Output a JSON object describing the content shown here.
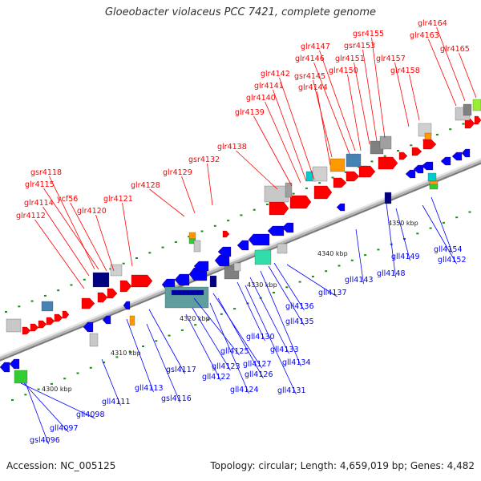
{
  "title": "Gloeobacter violaceus PCC 7421, complete genome",
  "footer": {
    "accession": "Accession: NC_005125",
    "summary": "Topology: circular; Length: 4,659,019 bp; Genes: 4,482"
  },
  "colors": {
    "forward": "#ff0000",
    "reverse": "#0000ff",
    "backbone": "#999999",
    "marker": "#1a8a1a"
  },
  "ticks": [
    "4300 kbp",
    "4310 kbp",
    "4320 kbp",
    "4330 kbp",
    "4340 kbp",
    "4350 kbp"
  ],
  "forward_genes": [
    "gsr4118",
    "glr4115",
    "ycf56",
    "glr4114",
    "glr4120",
    "glr4121",
    "glr4112",
    "glr4128",
    "glr4129",
    "gsr4132",
    "glr4138",
    "glr4139",
    "glr4140",
    "glr4141",
    "glr4142",
    "glr4144",
    "gsr4145",
    "glr4146",
    "glr4147",
    "gsr4153",
    "gsr4155",
    "glr4150",
    "glr4151",
    "glr4157",
    "glr4158",
    "glr4163",
    "glr4164",
    "glr4165"
  ],
  "reverse_genes": [
    "gsl4096",
    "gll4097",
    "gll4098",
    "gll4111",
    "gll4113",
    "gsl4116",
    "gsl4117",
    "gll4122",
    "gll4123",
    "gll4124",
    "gll4125",
    "gll4126",
    "gll4127",
    "gll4130",
    "gll4131",
    "gll4133",
    "gll4134",
    "gll4135",
    "gll4136",
    "gll4137",
    "gll4143",
    "gll4148",
    "gll4149",
    "gll4152",
    "gll4154"
  ]
}
